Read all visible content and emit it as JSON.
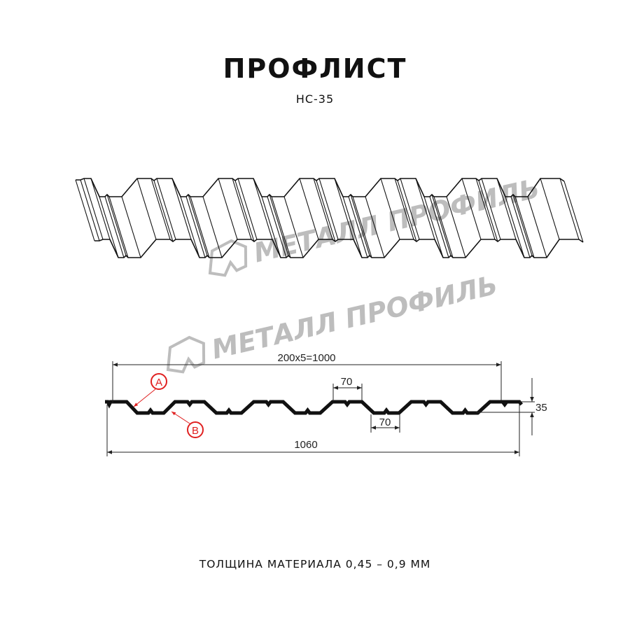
{
  "header": {
    "title": "ПРОФЛИСТ",
    "model": "НС-35"
  },
  "watermark": {
    "brand": "МЕТАЛЛ ПРОФИЛЬ",
    "color": "#a8a8a8"
  },
  "drawing": {
    "dimensions": {
      "effective_width": "200x5=1000",
      "total_width": "1060",
      "top_flat": "70",
      "bottom_flat": "70",
      "height": "35"
    },
    "callouts": [
      {
        "label": "A"
      },
      {
        "label": "B"
      }
    ],
    "callout_color": "#e02020",
    "profile_color": "#111111"
  },
  "footer": {
    "thickness": "ТОЛЩИНА МАТЕРИАЛА 0,45 – 0,9 ММ"
  }
}
